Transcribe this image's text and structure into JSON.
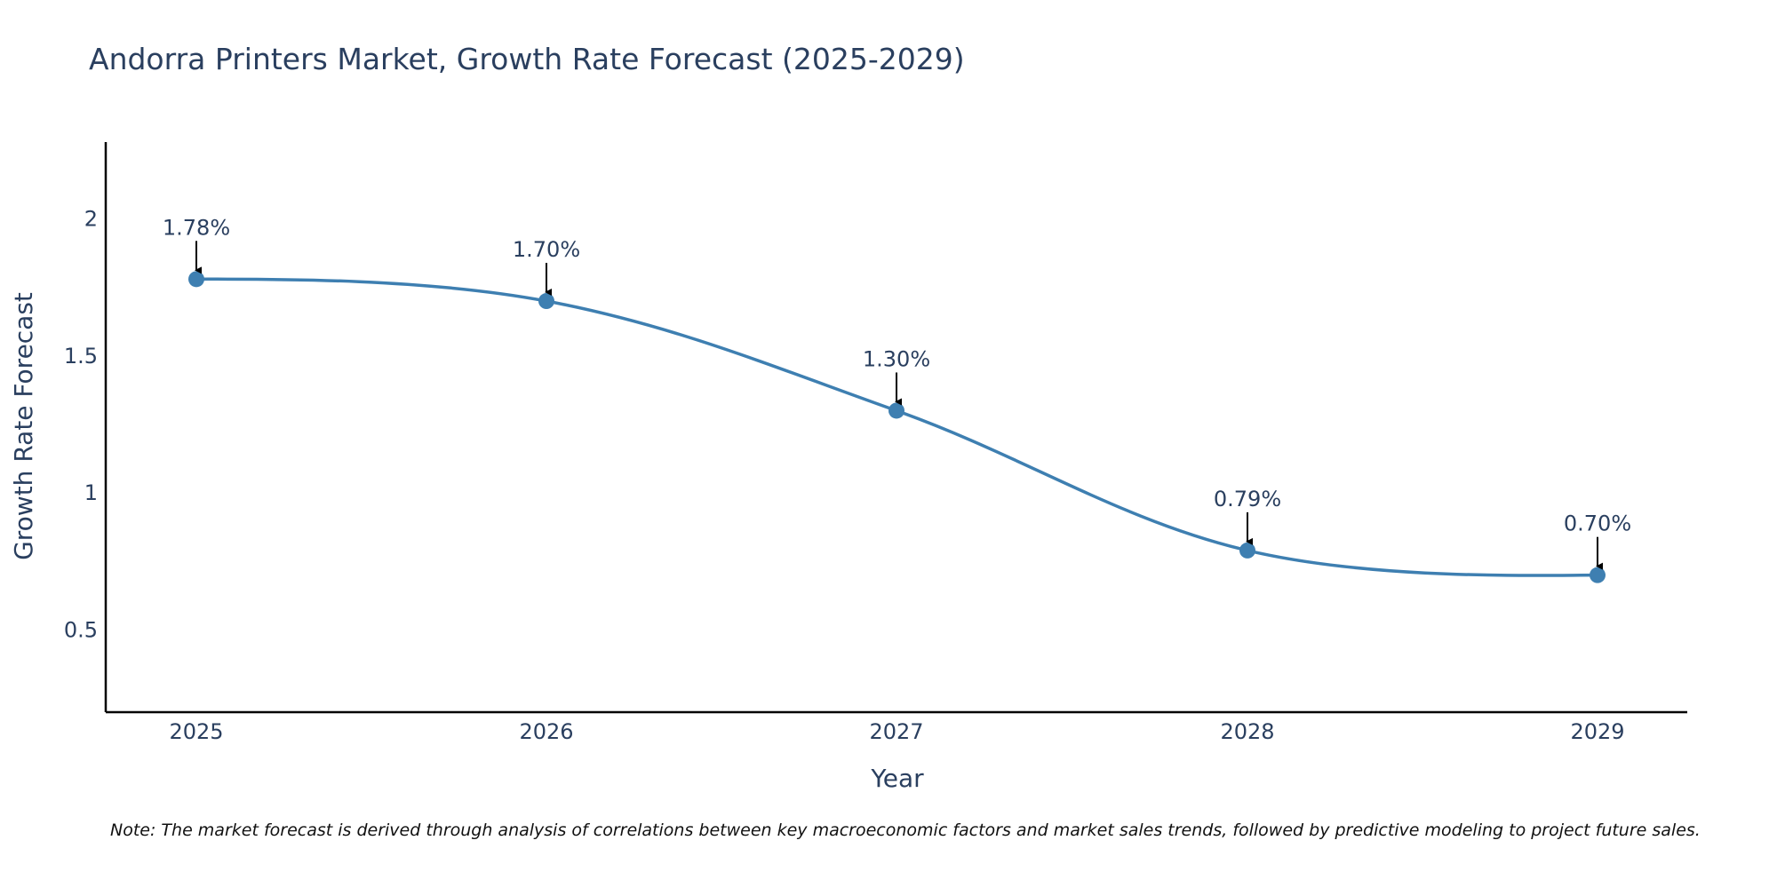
{
  "chart_data": {
    "type": "line",
    "title": "Andorra Printers Market, Growth Rate Forecast (2025-2029)",
    "xlabel": "Year",
    "ylabel": "Growth Rate Forecast",
    "categories": [
      "2025",
      "2026",
      "2027",
      "2028",
      "2029"
    ],
    "series": [
      {
        "name": "Growth Rate Forecast",
        "values": [
          1.78,
          1.7,
          1.3,
          0.79,
          0.7
        ]
      }
    ],
    "data_labels": [
      "1.78%",
      "1.70%",
      "1.30%",
      "0.79%",
      "0.70%"
    ],
    "y_ticks": [
      0.5,
      1,
      1.5,
      2
    ],
    "y_tick_labels": [
      "0.5",
      "1",
      "1.5",
      "2"
    ],
    "ylim": [
      0.2,
      2.28
    ],
    "grid": false,
    "line_color": "#3e7fb1",
    "marker_color": "#3e7fb1"
  },
  "note": "Note: The market forecast is derived through analysis of correlations between key macroeconomic factors and market sales trends, followed by predictive modeling to project future sales."
}
